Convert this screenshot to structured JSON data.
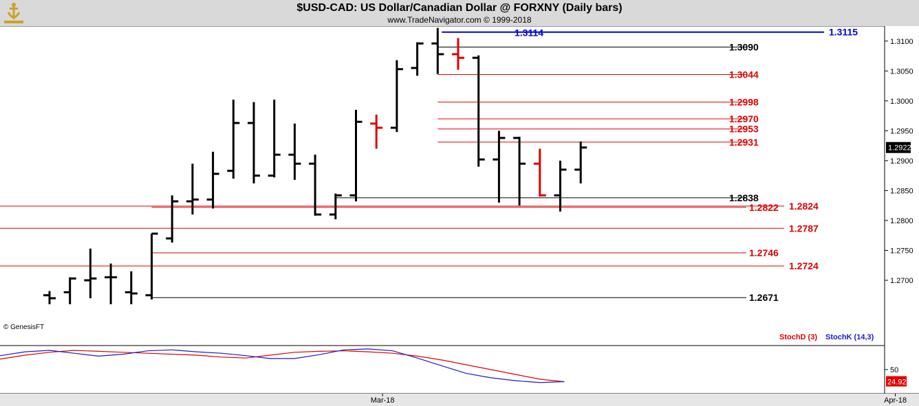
{
  "header": {
    "title": "$USD-CAD:  US Dollar/Canadian Dollar @ FORXNY  (Daily bars)",
    "subtitle": "www.TradeNavigator.com © 1999-2018",
    "logo_icon": "anchor-trophy-icon"
  },
  "credit": "© GenesisFT",
  "colors": {
    "bar_up": "#000000",
    "bar_highlight": "#e00000",
    "level_red": "#e00000",
    "level_black": "#000000",
    "level_blue": "#0000dd",
    "stoch_d": "#e00000",
    "stoch_k": "#1a1acc",
    "last_price_bg": "#000000",
    "stoch_last_bg": "#e00000"
  },
  "chart_data": [
    {
      "type": "ohlc",
      "price_axis": {
        "ylim": [
          1.2615,
          1.3125
        ],
        "ticks": [
          1.27,
          1.275,
          1.28,
          1.285,
          1.29,
          1.295,
          1.3,
          1.305,
          1.31
        ],
        "tick_labels": [
          "1.2700",
          "1.2750",
          "1.2800",
          "1.2850",
          "1.2900",
          "1.2950",
          "1.3000",
          "1.3050",
          "1.3100"
        ],
        "last_price": "1.2922",
        "last_value": 1.2922
      },
      "time_axis": {
        "labels": [
          {
            "text": "Mar-18",
            "index": 16.3
          },
          {
            "text": "Apr-18",
            "index": 41.4
          }
        ]
      },
      "bars": [
        {
          "o": 1.2675,
          "h": 1.2682,
          "l": 1.266,
          "c": 1.267,
          "red": false
        },
        {
          "o": 1.268,
          "h": 1.2705,
          "l": 1.266,
          "c": 1.2703,
          "red": false
        },
        {
          "o": 1.27,
          "h": 1.2753,
          "l": 1.267,
          "c": 1.2703,
          "red": false
        },
        {
          "o": 1.2705,
          "h": 1.2728,
          "l": 1.266,
          "c": 1.2705,
          "red": false
        },
        {
          "o": 1.268,
          "h": 1.2715,
          "l": 1.266,
          "c": 1.2678,
          "red": false
        },
        {
          "o": 1.2675,
          "h": 1.2778,
          "l": 1.2668,
          "c": 1.2778,
          "red": false
        },
        {
          "o": 1.277,
          "h": 1.2842,
          "l": 1.2763,
          "c": 1.2832,
          "red": false
        },
        {
          "o": 1.2832,
          "h": 1.2895,
          "l": 1.281,
          "c": 1.2835,
          "red": false
        },
        {
          "o": 1.2835,
          "h": 1.2915,
          "l": 1.282,
          "c": 1.2878,
          "red": false
        },
        {
          "o": 1.2883,
          "h": 1.3002,
          "l": 1.287,
          "c": 1.2963,
          "red": false
        },
        {
          "o": 1.2963,
          "h": 1.2998,
          "l": 1.2862,
          "c": 1.2875,
          "red": false
        },
        {
          "o": 1.2875,
          "h": 1.3002,
          "l": 1.2872,
          "c": 1.291,
          "red": false
        },
        {
          "o": 1.291,
          "h": 1.2962,
          "l": 1.2868,
          "c": 1.2895,
          "red": false
        },
        {
          "o": 1.2895,
          "h": 1.291,
          "l": 1.2808,
          "c": 1.281,
          "red": false
        },
        {
          "o": 1.281,
          "h": 1.2845,
          "l": 1.2802,
          "c": 1.2842,
          "red": false
        },
        {
          "o": 1.2842,
          "h": 1.2985,
          "l": 1.2832,
          "c": 1.2965,
          "red": false
        },
        {
          "o": 1.2962,
          "h": 1.2977,
          "l": 1.292,
          "c": 1.2955,
          "red": true
        },
        {
          "o": 1.2955,
          "h": 1.3068,
          "l": 1.2948,
          "c": 1.3053,
          "red": false
        },
        {
          "o": 1.3055,
          "h": 1.3098,
          "l": 1.3042,
          "c": 1.3096,
          "red": false
        },
        {
          "o": 1.3096,
          "h": 1.3122,
          "l": 1.3045,
          "c": 1.3078,
          "red": false
        },
        {
          "o": 1.3078,
          "h": 1.3105,
          "l": 1.3052,
          "c": 1.3072,
          "red": true
        },
        {
          "o": 1.3072,
          "h": 1.3076,
          "l": 1.289,
          "c": 1.2902,
          "red": false
        },
        {
          "o": 1.2902,
          "h": 1.295,
          "l": 1.283,
          "c": 1.2938,
          "red": false
        },
        {
          "o": 1.2938,
          "h": 1.294,
          "l": 1.2825,
          "c": 1.2895,
          "red": false
        },
        {
          "o": 1.2895,
          "h": 1.292,
          "l": 1.284,
          "c": 1.2842,
          "red": true
        },
        {
          "o": 1.2842,
          "h": 1.29,
          "l": 1.2815,
          "c": 1.2885,
          "red": false
        },
        {
          "o": 1.2885,
          "h": 1.2932,
          "l": 1.2862,
          "c": 1.2922,
          "red": false
        }
      ],
      "levels": [
        {
          "value": 1.3115,
          "label": "1.3115",
          "color": "blue",
          "from": 19.2,
          "label_side": "right",
          "thick": true
        },
        {
          "value": 1.3114,
          "label": "1.3114",
          "color": "blue",
          "label_only": true,
          "label_side": "left"
        },
        {
          "value": 1.309,
          "label": "1.3090",
          "color": "black",
          "from": 19.0
        },
        {
          "value": 1.3044,
          "label": "1.3044",
          "color": "red",
          "from": 19.0
        },
        {
          "value": 1.2998,
          "label": "1.2998",
          "color": "red",
          "from": 19.0
        },
        {
          "value": 1.297,
          "label": "1.2970",
          "color": "red",
          "from": 19.0
        },
        {
          "value": 1.2953,
          "label": "1.2953",
          "color": "red",
          "from": 19.0
        },
        {
          "value": 1.2931,
          "label": "1.2931",
          "color": "red",
          "from": 19.0
        },
        {
          "value": 1.2838,
          "label": "1.2838",
          "color": "black",
          "from": 14.0
        },
        {
          "value": 1.2824,
          "label": "1.2824",
          "color": "red",
          "from": -5.0,
          "label_side": "far"
        },
        {
          "value": 1.2822,
          "label": "1.2822",
          "color": "red",
          "from": 5.0
        },
        {
          "value": 1.2787,
          "label": "1.2787",
          "color": "red",
          "from": -5.0,
          "label_side": "far"
        },
        {
          "value": 1.2746,
          "label": "1.2746",
          "color": "red",
          "from": 5.0
        },
        {
          "value": 1.2724,
          "label": "1.2724",
          "color": "red",
          "from": -5.0,
          "label_side": "far"
        },
        {
          "value": 1.2671,
          "label": "1.2671",
          "color": "black",
          "from": 5.0
        }
      ]
    },
    {
      "type": "line",
      "name": "stochastic",
      "ylim": [
        0,
        100
      ],
      "ticks": [
        50
      ],
      "tick_labels": [
        "50"
      ],
      "last_value": "24.92",
      "series": [
        {
          "name": "StochD (3)",
          "values": [
            86,
            87,
            85,
            81,
            76,
            71,
            68,
            72,
            80,
            86,
            90,
            88,
            86,
            84,
            82,
            80,
            76,
            74,
            80,
            86,
            88,
            89,
            87,
            84,
            78,
            70,
            60,
            50,
            40,
            30,
            24.92
          ]
        },
        {
          "name": "StochK (14,3)",
          "values": [
            84,
            86,
            82,
            77,
            71,
            68,
            70,
            79,
            87,
            90,
            84,
            78,
            82,
            89,
            91,
            87,
            84,
            79,
            73,
            73,
            81,
            91,
            93,
            89,
            74,
            58,
            42,
            33,
            27,
            23,
            25
          ]
        }
      ],
      "x_start": -10.8,
      "x_step": 1.2
    }
  ]
}
